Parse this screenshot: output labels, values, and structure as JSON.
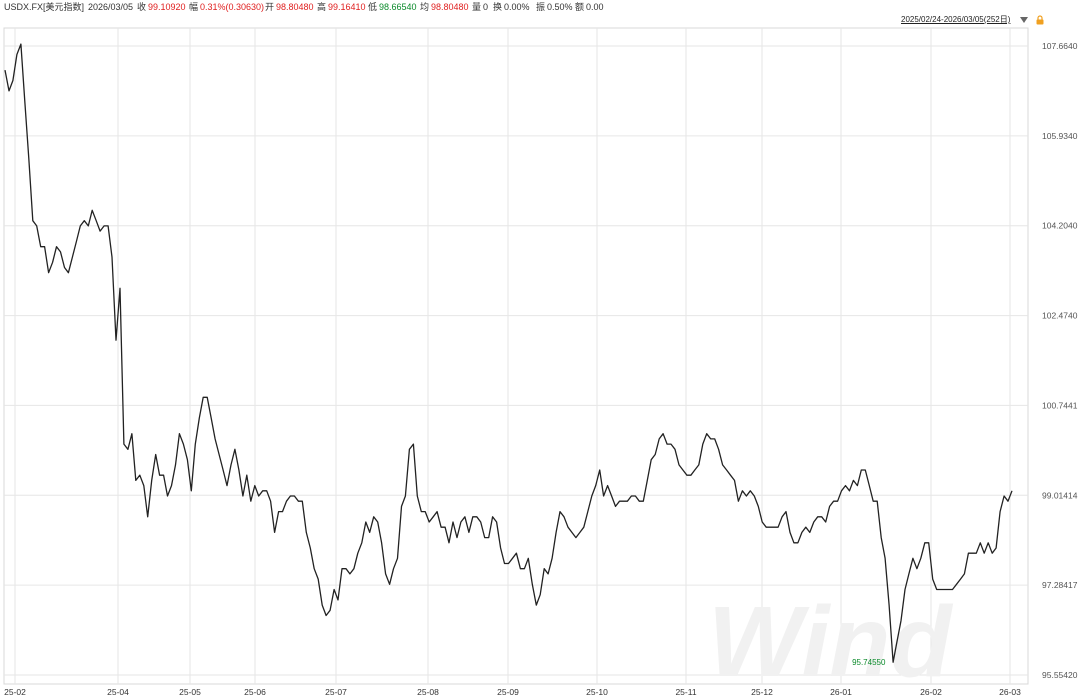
{
  "header": {
    "symbol": "USDX.FX[美元指数]",
    "date": "2026/03/05",
    "close_label": "收",
    "close_value": "99.10920",
    "change_label": "幅",
    "change_value": "0.31%(0.30630)",
    "open_label": "开",
    "open_value": "98.80480",
    "high_label": "高",
    "high_value": "99.16410",
    "low_label": "低",
    "low_value": "98.66540",
    "avg_label": "均",
    "avg_value": "98.80480",
    "volume_label": "量",
    "volume_value": "0",
    "turnover_label": "换",
    "turnover_value": "0.00%",
    "amplitude_label": "振",
    "amplitude_value": "0.50%",
    "amount_label": "额",
    "amount_value": "0.00"
  },
  "toolbar": {
    "range_label": "2025/02/24-2026/03/05(252日)",
    "dropdown_icon": "triangle-down-icon",
    "lock_icon": "lock-icon"
  },
  "watermark": "Wind",
  "min_marker_label": "95.74550",
  "colors": {
    "line": "#222222",
    "up": "#e02020",
    "down": "#0a8a2a",
    "grid": "#e6e6e6"
  },
  "chart_data": {
    "type": "line",
    "title": "",
    "ylim": [
      95.5542,
      108.2
    ],
    "y_ticks": [
      "107.6640",
      "105.9340",
      "104.2040",
      "102.4740",
      "100.7441",
      "99.01414",
      "97.28417",
      "95.55420"
    ],
    "x_ticks": [
      "25-02",
      "25-04",
      "25-05",
      "25-06",
      "25-07",
      "25-08",
      "25-09",
      "25-10",
      "25-11",
      "25-12",
      "26-01",
      "26-02",
      "26-03"
    ],
    "grid": true,
    "series": [
      {
        "values": [
          107.2,
          106.8,
          107.0,
          107.5,
          107.7,
          106.6,
          105.5,
          104.3,
          104.2,
          103.8,
          103.8,
          103.3,
          103.5,
          103.8,
          103.7,
          103.4,
          103.3,
          103.6,
          103.9,
          104.2,
          104.3,
          104.2,
          104.5,
          104.3,
          104.1,
          104.2,
          104.2,
          103.6,
          102.0,
          103.0,
          100.0,
          99.9,
          100.2,
          99.3,
          99.4,
          99.2,
          98.6,
          99.3,
          99.8,
          99.4,
          99.4,
          99.0,
          99.2,
          99.6,
          100.2,
          100.0,
          99.7,
          99.1,
          100.0,
          100.5,
          100.9,
          100.9,
          100.5,
          100.1,
          99.8,
          99.5,
          99.2,
          99.6,
          99.9,
          99.5,
          99.0,
          99.4,
          98.9,
          99.2,
          99.0,
          99.1,
          99.1,
          98.9,
          98.3,
          98.7,
          98.7,
          98.9,
          99.0,
          99.0,
          98.9,
          98.9,
          98.3,
          98.0,
          97.6,
          97.4,
          96.9,
          96.7,
          96.8,
          97.2,
          97.0,
          97.6,
          97.6,
          97.5,
          97.6,
          97.9,
          98.1,
          98.5,
          98.3,
          98.6,
          98.5,
          98.1,
          97.5,
          97.3,
          97.6,
          97.8,
          98.8,
          99.0,
          99.9,
          100.0,
          99.0,
          98.7,
          98.7,
          98.5,
          98.6,
          98.7,
          98.4,
          98.4,
          98.1,
          98.5,
          98.2,
          98.5,
          98.6,
          98.3,
          98.6,
          98.6,
          98.5,
          98.2,
          98.2,
          98.6,
          98.5,
          98.0,
          97.7,
          97.7,
          97.8,
          97.9,
          97.6,
          97.6,
          97.8,
          97.3,
          96.9,
          97.1,
          97.6,
          97.5,
          97.8,
          98.3,
          98.7,
          98.6,
          98.4,
          98.3,
          98.2,
          98.3,
          98.4,
          98.7,
          99.0,
          99.2,
          99.5,
          99.0,
          99.2,
          99.0,
          98.8,
          98.9,
          98.9,
          98.9,
          99.0,
          99.0,
          98.9,
          98.9,
          99.3,
          99.7,
          99.8,
          100.1,
          100.2,
          100.0,
          100.0,
          99.9,
          99.6,
          99.5,
          99.4,
          99.4,
          99.5,
          99.6,
          100.0,
          100.2,
          100.1,
          100.1,
          99.9,
          99.6,
          99.5,
          99.4,
          99.3,
          98.9,
          99.1,
          99.0,
          99.1,
          99.0,
          98.8,
          98.5,
          98.4,
          98.4,
          98.4,
          98.4,
          98.6,
          98.7,
          98.3,
          98.1,
          98.1,
          98.3,
          98.4,
          98.3,
          98.5,
          98.6,
          98.6,
          98.5,
          98.8,
          98.9,
          98.9,
          99.1,
          99.2,
          99.1,
          99.3,
          99.2,
          99.5,
          99.5,
          99.2,
          98.9,
          98.9,
          98.2,
          97.8,
          96.9,
          95.8,
          96.2,
          96.6,
          97.2,
          97.5,
          97.8,
          97.6,
          97.8,
          98.1,
          98.1,
          97.4,
          97.2,
          97.2,
          97.2,
          97.2,
          97.2,
          97.3,
          97.4,
          97.5,
          97.9,
          97.9,
          97.9,
          98.1,
          97.9,
          98.1,
          97.9,
          98.0,
          98.7,
          99.0,
          98.9,
          99.1
        ]
      }
    ]
  }
}
